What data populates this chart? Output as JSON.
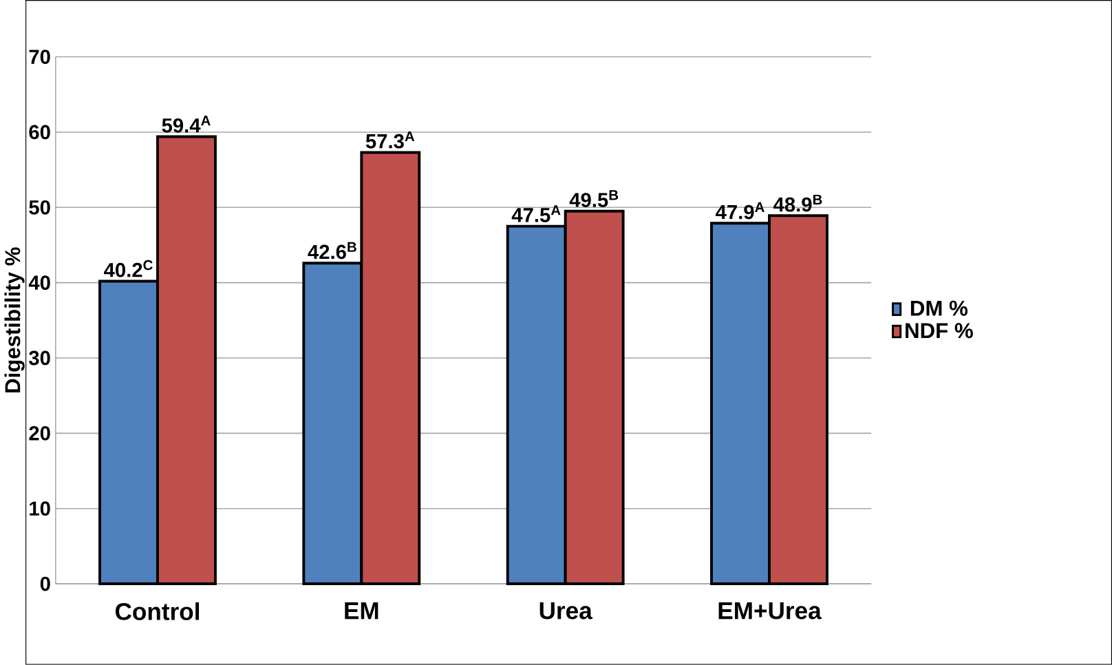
{
  "chart_data": {
    "type": "bar",
    "ylabel": "Digestibility %",
    "categories": [
      "Control",
      "EM",
      "Urea",
      "EM+Urea"
    ],
    "series": [
      {
        "name": "DM %",
        "color": "#4f81bd",
        "values": [
          40.2,
          42.6,
          47.5,
          47.9
        ],
        "value_labels": [
          "40.2$^{C}$",
          "42.6$^{B}$",
          "47.5$^{A}$",
          "47.9$^{A}$"
        ]
      },
      {
        "name": "NDF %",
        "color": "#c0504d",
        "values": [
          59.4,
          57.3,
          49.5,
          48.9
        ],
        "value_labels": [
          "59.4$^{A}$",
          "57.3$^{A}$",
          "49.5$^{B}$",
          "48.9$^{B}$"
        ]
      }
    ],
    "ylim": [
      0,
      70
    ],
    "yticks": [
      0,
      10,
      20,
      30,
      40,
      50,
      60,
      70
    ],
    "grid": "y",
    "legend": "right"
  }
}
